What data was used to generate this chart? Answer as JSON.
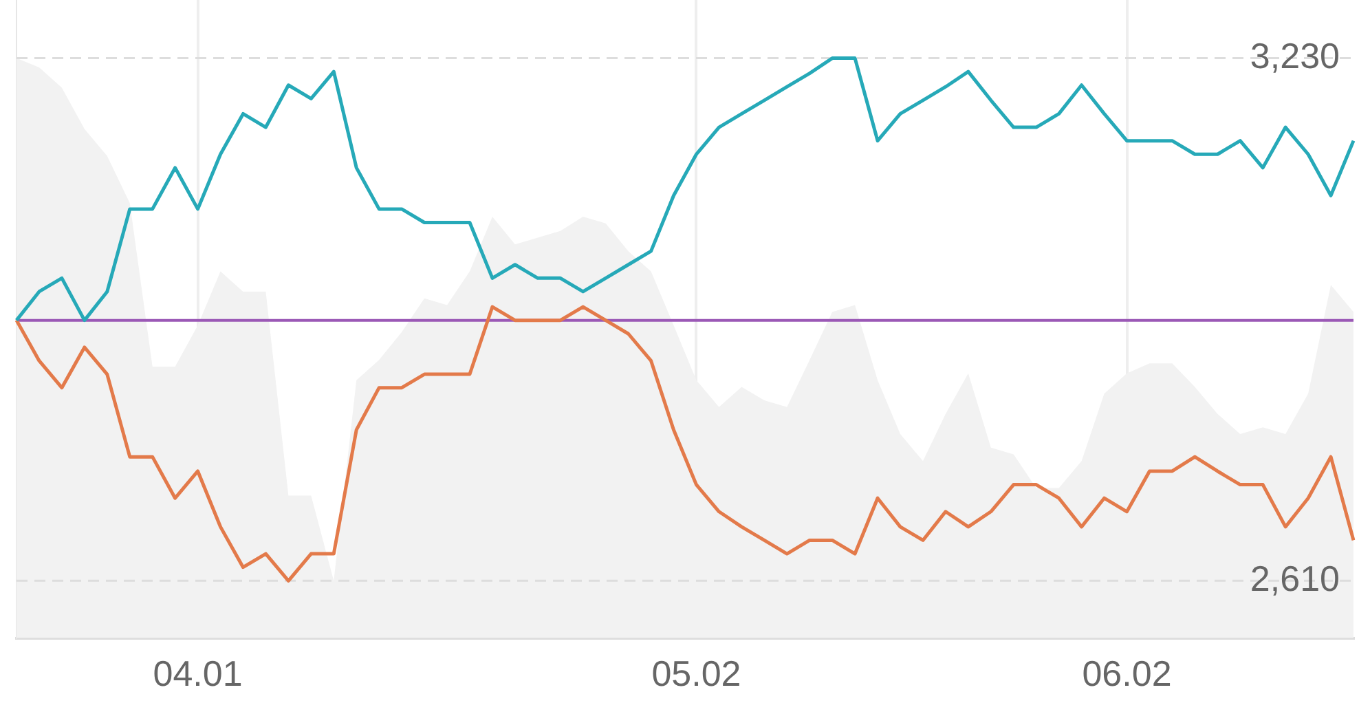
{
  "chart_data": {
    "type": "line",
    "categories": [
      null,
      null,
      null,
      null,
      null,
      null,
      null,
      null,
      "04.01",
      null,
      null,
      null,
      null,
      null,
      null,
      null,
      null,
      null,
      null,
      null,
      null,
      null,
      null,
      null,
      null,
      null,
      null,
      null,
      null,
      null,
      "05.02",
      null,
      null,
      null,
      null,
      null,
      null,
      null,
      null,
      null,
      null,
      null,
      null,
      null,
      null,
      null,
      null,
      null,
      null,
      "06.02",
      null,
      null,
      null,
      null,
      null,
      null,
      null,
      null,
      null,
      null
    ],
    "series": [
      {
        "type": "area",
        "color": "#f2f2f2",
        "values": [
          3230,
          3219,
          3195,
          3146,
          3114,
          3058,
          2864,
          2864,
          2913,
          2977,
          2953,
          2953,
          2711,
          2711,
          2610,
          2848,
          2872,
          2905,
          2945,
          2937,
          2977,
          3042,
          3009,
          3017,
          3025,
          3042,
          3034,
          3001,
          2977,
          2913,
          2848,
          2816,
          2840,
          2824,
          2816,
          2872,
          2929,
          2937,
          2848,
          2784,
          2752,
          2808,
          2856,
          2768,
          2760,
          2720,
          2720,
          2752,
          2832,
          2856,
          2868,
          2868,
          2840,
          2808,
          2784,
          2792,
          2784,
          2832,
          2961,
          2929
        ]
      },
      {
        "color": "#26a9b8",
        "values": [
          2919,
          2953,
          2969,
          2919,
          2953,
          3051,
          3051,
          3100,
          3051,
          3116,
          3164,
          3148,
          3198,
          3182,
          3214,
          3100,
          3051,
          3051,
          3035,
          3035,
          3035,
          2969,
          2985,
          2969,
          2969,
          2953,
          2969,
          2985,
          3001,
          3067,
          3116,
          3148,
          3164,
          3180,
          3196,
          3212,
          3230,
          3230,
          3132,
          3164,
          3180,
          3196,
          3214,
          3180,
          3148,
          3148,
          3164,
          3198,
          3164,
          3132,
          3132,
          3132,
          3116,
          3116,
          3132,
          3100,
          3148,
          3116,
          3067,
          3132
        ]
      },
      {
        "color": "#e37a4a",
        "values": [
          2919,
          2871,
          2839,
          2887,
          2855,
          2757,
          2757,
          2708,
          2740,
          2674,
          2626,
          2642,
          2610,
          2642,
          2642,
          2789,
          2839,
          2839,
          2855,
          2855,
          2855,
          2935,
          2919,
          2919,
          2919,
          2935,
          2919,
          2903,
          2871,
          2789,
          2724,
          2692,
          2674,
          2658,
          2642,
          2658,
          2658,
          2642,
          2708,
          2674,
          2658,
          2692,
          2674,
          2692,
          2724,
          2724,
          2708,
          2674,
          2708,
          2692,
          2740,
          2740,
          2757,
          2740,
          2724,
          2724,
          2674,
          2708,
          2757,
          2658
        ]
      }
    ],
    "ylim": [
      2542,
      3299
    ],
    "yticks": [
      {
        "value": 3230,
        "label": "3,230"
      },
      {
        "value": 2610,
        "label": "2,610"
      }
    ],
    "ref_lines": [
      {
        "axis": "y",
        "value": 2919,
        "color": "#9b59b6"
      },
      {
        "axis": "y",
        "value": 3230,
        "color": "#dddddd",
        "line_style": "dashed"
      },
      {
        "axis": "y",
        "value": 2610,
        "color": "#dddddd",
        "line_style": "dashed"
      }
    ],
    "grid": "x",
    "legend": false,
    "marker": "none",
    "line_style": "solid"
  }
}
